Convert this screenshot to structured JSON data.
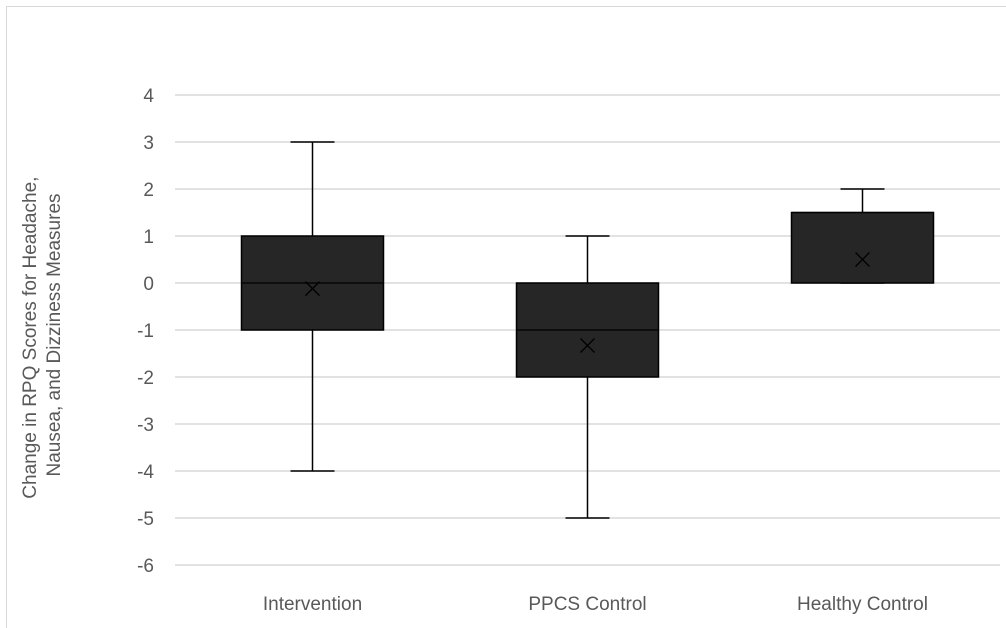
{
  "chart_data": {
    "type": "box",
    "ylabel_lines": [
      "Change in RPQ Scores for Headache,",
      "Nausea, and Dizziness Measures"
    ],
    "ylim": [
      -6,
      4
    ],
    "yticks": [
      4,
      3,
      2,
      1,
      0,
      -1,
      -2,
      -3,
      -4,
      -5,
      -6
    ],
    "ytick_labels": [
      "4",
      "3",
      "2",
      "1",
      "0",
      "-1",
      "-2",
      "-3",
      "-4",
      "-5",
      "-6"
    ],
    "grid": true,
    "categories": [
      "Intervention",
      "PPCS Control",
      "Healthy Control"
    ],
    "boxes": [
      {
        "min": -4,
        "q1": -1,
        "median": 0,
        "q3": 1,
        "max": 3,
        "mean": -0.12
      },
      {
        "min": -5,
        "q1": -2,
        "median": -1,
        "q3": 0,
        "max": 1,
        "mean": -1.33
      },
      {
        "min": 0,
        "q1": 0,
        "median": 1.5,
        "q3": 1.5,
        "max": 2,
        "mean": 0.5
      }
    ],
    "colors": {
      "box": "#262626",
      "grid": "#d9d9d9",
      "text": "#595959",
      "line": "#000000"
    }
  }
}
